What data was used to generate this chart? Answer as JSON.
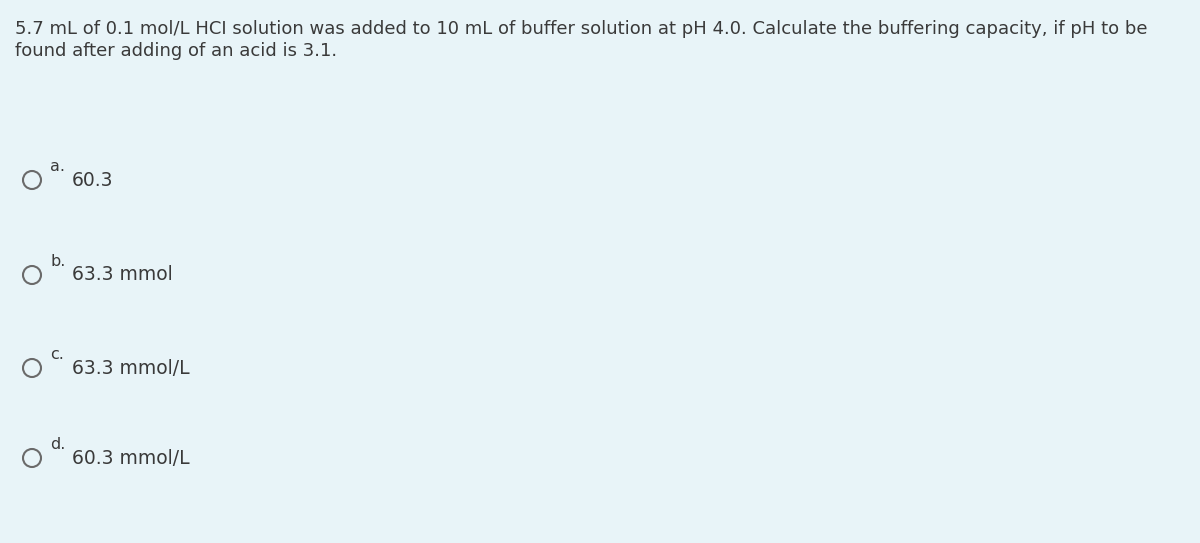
{
  "background_color": "#e8f4f8",
  "question_text_line1": "5.7 mL of 0.1 mol/L HCI solution was added to 10 mL of buffer solution at pH 4.0. Calculate the buffering capacity, if pH to be",
  "question_text_line2": "found after adding of an acid is 3.1.",
  "options": [
    {
      "label": "a.",
      "text": "60.3"
    },
    {
      "label": "b.",
      "text": "63.3 mmol"
    },
    {
      "label": "c.",
      "text": "63.3 mmol/L"
    },
    {
      "label": "d.",
      "text": "60.3 mmol/L"
    }
  ],
  "text_color": "#3a3a3a",
  "circle_color": "#6a6a6a",
  "question_fontsize": 13.0,
  "option_label_fontsize": 11.5,
  "option_text_fontsize": 13.5,
  "fig_width": 12.0,
  "fig_height": 5.43,
  "dpi": 100
}
